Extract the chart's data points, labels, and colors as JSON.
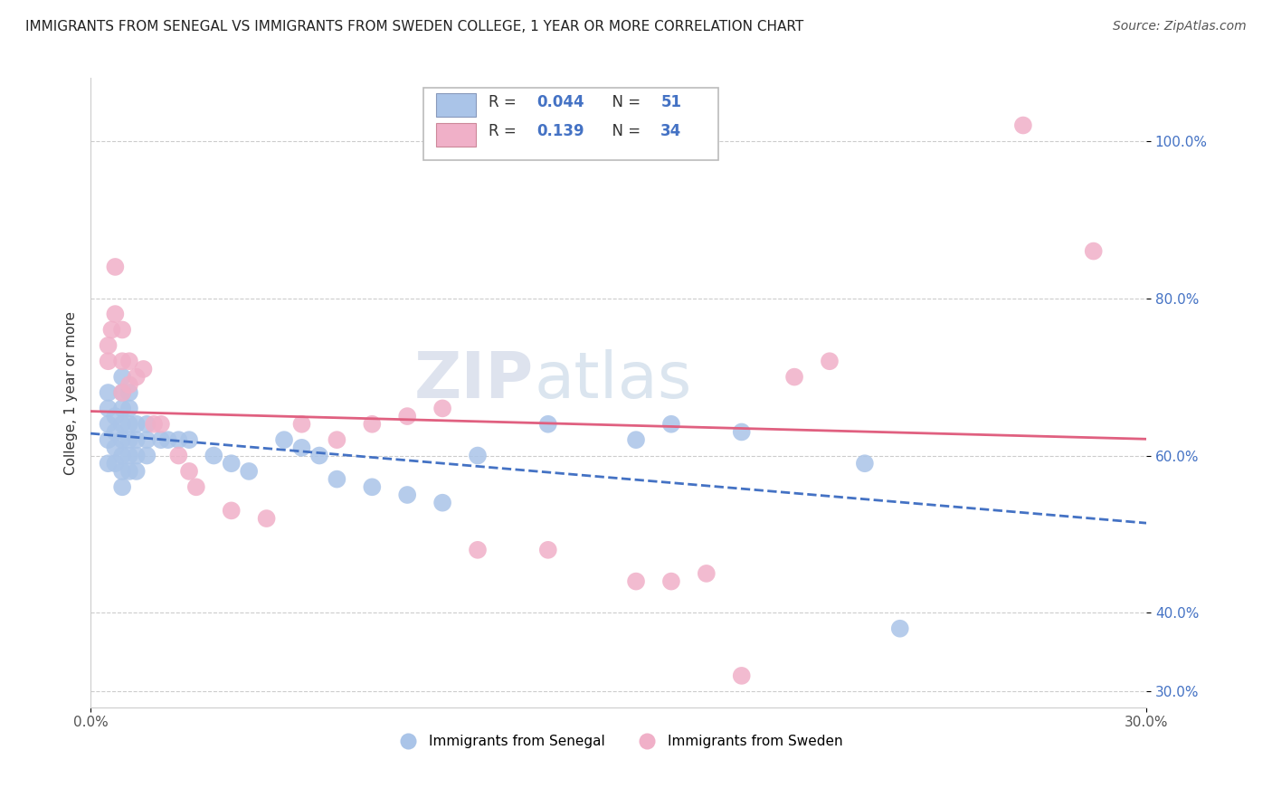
{
  "title": "IMMIGRANTS FROM SENEGAL VS IMMIGRANTS FROM SWEDEN COLLEGE, 1 YEAR OR MORE CORRELATION CHART",
  "source": "Source: ZipAtlas.com",
  "ylabel": "College, 1 year or more",
  "xlim": [
    0.0,
    0.3
  ],
  "ylim": [
    0.28,
    1.08
  ],
  "ytick_labels": [
    "100.0%",
    "80.0%",
    "60.0%",
    "40.0%",
    "30.0%"
  ],
  "ytick_values": [
    1.0,
    0.8,
    0.6,
    0.4,
    0.3
  ],
  "color_senegal": "#aac4e8",
  "color_sweden": "#f0b0c8",
  "line_color_senegal": "#4472c4",
  "line_color_sweden": "#e06080",
  "senegal_label": "Immigrants from Senegal",
  "sweden_label": "Immigrants from Sweden",
  "senegal_x": [
    0.005,
    0.005,
    0.005,
    0.005,
    0.005,
    0.007,
    0.007,
    0.007,
    0.007,
    0.009,
    0.009,
    0.009,
    0.009,
    0.009,
    0.009,
    0.009,
    0.009,
    0.011,
    0.011,
    0.011,
    0.011,
    0.011,
    0.011,
    0.013,
    0.013,
    0.013,
    0.013,
    0.016,
    0.016,
    0.016,
    0.02,
    0.022,
    0.025,
    0.028,
    0.035,
    0.04,
    0.045,
    0.055,
    0.06,
    0.065,
    0.07,
    0.08,
    0.09,
    0.1,
    0.11,
    0.13,
    0.155,
    0.165,
    0.185,
    0.22,
    0.23
  ],
  "senegal_y": [
    0.59,
    0.62,
    0.64,
    0.66,
    0.68,
    0.59,
    0.61,
    0.63,
    0.65,
    0.56,
    0.58,
    0.6,
    0.62,
    0.64,
    0.66,
    0.68,
    0.7,
    0.58,
    0.6,
    0.62,
    0.64,
    0.66,
    0.68,
    0.58,
    0.6,
    0.62,
    0.64,
    0.6,
    0.62,
    0.64,
    0.62,
    0.62,
    0.62,
    0.62,
    0.6,
    0.59,
    0.58,
    0.62,
    0.61,
    0.6,
    0.57,
    0.56,
    0.55,
    0.54,
    0.6,
    0.64,
    0.62,
    0.64,
    0.63,
    0.59,
    0.38
  ],
  "sweden_x": [
    0.005,
    0.005,
    0.006,
    0.007,
    0.007,
    0.009,
    0.009,
    0.009,
    0.011,
    0.011,
    0.013,
    0.015,
    0.018,
    0.02,
    0.025,
    0.028,
    0.03,
    0.04,
    0.05,
    0.06,
    0.07,
    0.08,
    0.09,
    0.1,
    0.11,
    0.13,
    0.155,
    0.165,
    0.175,
    0.185,
    0.2,
    0.21,
    0.265,
    0.285
  ],
  "sweden_y": [
    0.72,
    0.74,
    0.76,
    0.78,
    0.84,
    0.68,
    0.72,
    0.76,
    0.69,
    0.72,
    0.7,
    0.71,
    0.64,
    0.64,
    0.6,
    0.58,
    0.56,
    0.53,
    0.52,
    0.64,
    0.62,
    0.64,
    0.65,
    0.66,
    0.48,
    0.48,
    0.44,
    0.44,
    0.45,
    0.32,
    0.7,
    0.72,
    1.02,
    0.86
  ],
  "watermark": "ZIPatlas",
  "background_color": "#ffffff",
  "grid_color": "#cccccc",
  "legend_r1_label": "R = ",
  "legend_r1_val": "0.044",
  "legend_r1_n": "N = ",
  "legend_r1_nval": "51",
  "legend_r2_label": "R = ",
  "legend_r2_val": "0.139",
  "legend_r2_n": "N = ",
  "legend_r2_nval": "34"
}
